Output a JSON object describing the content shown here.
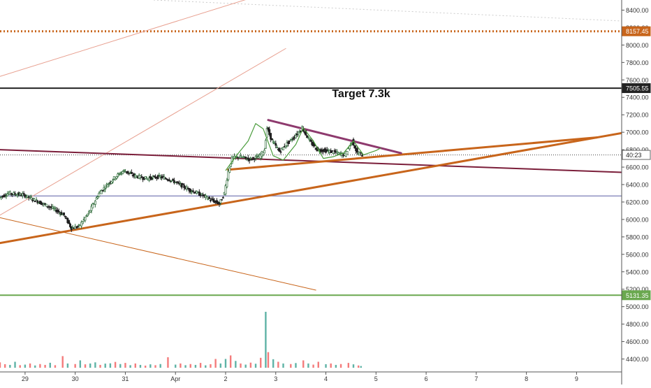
{
  "chart_data": {
    "type": "candlestick",
    "title": "",
    "annotation": "Target 7.3k",
    "y_axis": {
      "ylim": [
        4300,
        8500
      ],
      "ticks": [
        4400,
        4600,
        4800,
        5000,
        5200,
        5400,
        5600,
        5800,
        6000,
        6200,
        6400,
        6600,
        6800,
        7000,
        7200,
        7400,
        7600,
        7800,
        8000,
        8200,
        8400
      ],
      "tick_labels": [
        "4400.00",
        "4600.00",
        "4800.00",
        "5000.00",
        "5200.00",
        "5400.00",
        "5600.00",
        "5800.00",
        "6000.00",
        "6200.00",
        "6400.00",
        "6600.00",
        "6800.00",
        "7000.00",
        "7200.00",
        "7400.00",
        "7600.00",
        "7800.00",
        "8000.00",
        "8200.00",
        "8400.00"
      ],
      "price_labels": [
        {
          "value": 8157.45,
          "text": "8157.45",
          "color": "#c8651b"
        },
        {
          "value": 7505.55,
          "text": "7505.55",
          "color": "#222222"
        },
        {
          "value": 6740,
          "text": "40:23",
          "color": "#ffffff"
        },
        {
          "value": 5131.35,
          "text": "5131.35",
          "color": "#6aa84f"
        }
      ]
    },
    "x_axis": {
      "xlim": [
        28.5,
        10.0
      ],
      "tick_labels": [
        {
          "t": 29.0,
          "text": "29"
        },
        {
          "t": 30.0,
          "text": "30"
        },
        {
          "t": 31.0,
          "text": "31"
        },
        {
          "t": 32.0,
          "text": "Apr"
        },
        {
          "t": 33.0,
          "text": "2"
        },
        {
          "t": 34.0,
          "text": "3"
        },
        {
          "t": 35.0,
          "text": "4"
        },
        {
          "t": 36.0,
          "text": "5"
        },
        {
          "t": 37.0,
          "text": "6"
        },
        {
          "t": 38.0,
          "text": "7"
        },
        {
          "t": 39.0,
          "text": "8"
        },
        {
          "t": 40.0,
          "text": "9"
        }
      ]
    },
    "price_path": [
      {
        "t": 28.5,
        "p": 6250
      },
      {
        "t": 28.7,
        "p": 6300
      },
      {
        "t": 29.0,
        "p": 6280
      },
      {
        "t": 29.3,
        "p": 6200
      },
      {
        "t": 29.6,
        "p": 6120
      },
      {
        "t": 29.8,
        "p": 6050
      },
      {
        "t": 29.95,
        "p": 5900
      },
      {
        "t": 30.1,
        "p": 5920
      },
      {
        "t": 30.3,
        "p": 6080
      },
      {
        "t": 30.5,
        "p": 6300
      },
      {
        "t": 30.7,
        "p": 6420
      },
      {
        "t": 30.85,
        "p": 6500
      },
      {
        "t": 31.0,
        "p": 6560
      },
      {
        "t": 31.2,
        "p": 6500
      },
      {
        "t": 31.45,
        "p": 6470
      },
      {
        "t": 31.7,
        "p": 6490
      },
      {
        "t": 31.9,
        "p": 6460
      },
      {
        "t": 32.05,
        "p": 6420
      },
      {
        "t": 32.3,
        "p": 6340
      },
      {
        "t": 32.55,
        "p": 6280
      },
      {
        "t": 32.75,
        "p": 6220
      },
      {
        "t": 32.9,
        "p": 6180
      },
      {
        "t": 33.0,
        "p": 6300
      },
      {
        "t": 33.08,
        "p": 6550
      },
      {
        "t": 33.15,
        "p": 6700
      },
      {
        "t": 33.3,
        "p": 6720
      },
      {
        "t": 33.5,
        "p": 6690
      },
      {
        "t": 33.7,
        "p": 6720
      },
      {
        "t": 33.8,
        "p": 6800
      },
      {
        "t": 33.85,
        "p": 7050
      },
      {
        "t": 33.95,
        "p": 6900
      },
      {
        "t": 34.1,
        "p": 6780
      },
      {
        "t": 34.25,
        "p": 6870
      },
      {
        "t": 34.4,
        "p": 6950
      },
      {
        "t": 34.55,
        "p": 7050
      },
      {
        "t": 34.7,
        "p": 6900
      },
      {
        "t": 34.85,
        "p": 6800
      },
      {
        "t": 35.0,
        "p": 6790
      },
      {
        "t": 35.2,
        "p": 6770
      },
      {
        "t": 35.4,
        "p": 6740
      },
      {
        "t": 35.55,
        "p": 6900
      },
      {
        "t": 35.65,
        "p": 6760
      },
      {
        "t": 35.75,
        "p": 6740
      }
    ],
    "volume": {
      "ylim": [
        0,
        4000
      ],
      "bars": [
        {
          "t": 28.5,
          "v": 380,
          "c": "#f47c7c"
        },
        {
          "t": 28.6,
          "v": 250,
          "c": "#f47c7c"
        },
        {
          "t": 28.7,
          "v": 200,
          "c": "#5fb3a6"
        },
        {
          "t": 28.8,
          "v": 420,
          "c": "#5fb3a6"
        },
        {
          "t": 28.9,
          "v": 180,
          "c": "#f47c7c"
        },
        {
          "t": 29.0,
          "v": 220,
          "c": "#5fb3a6"
        },
        {
          "t": 29.1,
          "v": 300,
          "c": "#f47c7c"
        },
        {
          "t": 29.2,
          "v": 160,
          "c": "#5fb3a6"
        },
        {
          "t": 29.3,
          "v": 260,
          "c": "#f47c7c"
        },
        {
          "t": 29.4,
          "v": 200,
          "c": "#f47c7c"
        },
        {
          "t": 29.5,
          "v": 350,
          "c": "#5fb3a6"
        },
        {
          "t": 29.6,
          "v": 180,
          "c": "#f47c7c"
        },
        {
          "t": 29.75,
          "v": 820,
          "c": "#f47c7c"
        },
        {
          "t": 29.85,
          "v": 300,
          "c": "#5fb3a6"
        },
        {
          "t": 30.0,
          "v": 260,
          "c": "#f47c7c"
        },
        {
          "t": 30.1,
          "v": 520,
          "c": "#5fb3a6"
        },
        {
          "t": 30.2,
          "v": 240,
          "c": "#f47c7c"
        },
        {
          "t": 30.3,
          "v": 300,
          "c": "#5fb3a6"
        },
        {
          "t": 30.4,
          "v": 380,
          "c": "#5fb3a6"
        },
        {
          "t": 30.5,
          "v": 200,
          "c": "#f47c7c"
        },
        {
          "t": 30.6,
          "v": 290,
          "c": "#5fb3a6"
        },
        {
          "t": 30.7,
          "v": 310,
          "c": "#5fb3a6"
        },
        {
          "t": 30.8,
          "v": 410,
          "c": "#f47c7c"
        },
        {
          "t": 30.9,
          "v": 260,
          "c": "#5fb3a6"
        },
        {
          "t": 31.0,
          "v": 340,
          "c": "#f47c7c"
        },
        {
          "t": 31.1,
          "v": 180,
          "c": "#5fb3a6"
        },
        {
          "t": 31.2,
          "v": 300,
          "c": "#f47c7c"
        },
        {
          "t": 31.3,
          "v": 200,
          "c": "#5fb3a6"
        },
        {
          "t": 31.4,
          "v": 150,
          "c": "#f47c7c"
        },
        {
          "t": 31.5,
          "v": 240,
          "c": "#5fb3a6"
        },
        {
          "t": 31.6,
          "v": 180,
          "c": "#f47c7c"
        },
        {
          "t": 31.7,
          "v": 260,
          "c": "#5fb3a6"
        },
        {
          "t": 31.85,
          "v": 740,
          "c": "#f47c7c"
        },
        {
          "t": 32.0,
          "v": 220,
          "c": "#5fb3a6"
        },
        {
          "t": 32.1,
          "v": 300,
          "c": "#f47c7c"
        },
        {
          "t": 32.2,
          "v": 180,
          "c": "#5fb3a6"
        },
        {
          "t": 32.3,
          "v": 260,
          "c": "#f47c7c"
        },
        {
          "t": 32.4,
          "v": 200,
          "c": "#5fb3a6"
        },
        {
          "t": 32.5,
          "v": 340,
          "c": "#f47c7c"
        },
        {
          "t": 32.6,
          "v": 170,
          "c": "#5fb3a6"
        },
        {
          "t": 32.7,
          "v": 250,
          "c": "#f47c7c"
        },
        {
          "t": 32.8,
          "v": 620,
          "c": "#f47c7c"
        },
        {
          "t": 32.9,
          "v": 300,
          "c": "#5fb3a6"
        },
        {
          "t": 33.0,
          "v": 620,
          "c": "#5fb3a6"
        },
        {
          "t": 33.1,
          "v": 870,
          "c": "#f47c7c"
        },
        {
          "t": 33.2,
          "v": 480,
          "c": "#5fb3a6"
        },
        {
          "t": 33.3,
          "v": 300,
          "c": "#f47c7c"
        },
        {
          "t": 33.4,
          "v": 220,
          "c": "#5fb3a6"
        },
        {
          "t": 33.5,
          "v": 360,
          "c": "#f47c7c"
        },
        {
          "t": 33.6,
          "v": 280,
          "c": "#5fb3a6"
        },
        {
          "t": 33.7,
          "v": 700,
          "c": "#f47c7c"
        },
        {
          "t": 33.8,
          "v": 3950,
          "c": "#5fb3a6"
        },
        {
          "t": 33.85,
          "v": 1100,
          "c": "#f47c7c"
        },
        {
          "t": 33.95,
          "v": 600,
          "c": "#5fb3a6"
        },
        {
          "t": 34.05,
          "v": 420,
          "c": "#f47c7c"
        },
        {
          "t": 34.15,
          "v": 300,
          "c": "#5fb3a6"
        },
        {
          "t": 34.3,
          "v": 260,
          "c": "#f47c7c"
        },
        {
          "t": 34.4,
          "v": 330,
          "c": "#5fb3a6"
        },
        {
          "t": 34.55,
          "v": 520,
          "c": "#f47c7c"
        },
        {
          "t": 34.65,
          "v": 300,
          "c": "#5fb3a6"
        },
        {
          "t": 34.75,
          "v": 220,
          "c": "#f47c7c"
        },
        {
          "t": 34.85,
          "v": 420,
          "c": "#f47c7c"
        },
        {
          "t": 35.0,
          "v": 250,
          "c": "#5fb3a6"
        },
        {
          "t": 35.1,
          "v": 300,
          "c": "#f47c7c"
        },
        {
          "t": 35.2,
          "v": 200,
          "c": "#5fb3a6"
        },
        {
          "t": 35.3,
          "v": 260,
          "c": "#f47c7c"
        },
        {
          "t": 35.45,
          "v": 340,
          "c": "#f47c7c"
        },
        {
          "t": 35.55,
          "v": 240,
          "c": "#5fb3a6"
        },
        {
          "t": 35.65,
          "v": 160,
          "c": "#f47c7c"
        },
        {
          "t": 35.7,
          "v": 120,
          "c": "#5fb3a6"
        }
      ]
    },
    "horizontal_levels": [
      {
        "value": 8157.45,
        "color": "#c8651b",
        "style": "dotted"
      },
      {
        "value": 7505.55,
        "color": "#222222",
        "style": "solid"
      },
      {
        "value": 6270,
        "color": "#5b5ea6",
        "style": "solid"
      },
      {
        "value": 5131.35,
        "color": "#6aa84f",
        "style": "solid"
      },
      {
        "value": 6740,
        "color": "#444444",
        "style": "dashed"
      }
    ],
    "trendlines": [
      {
        "from": {
          "t": 28.5,
          "p": 7640
        },
        "to": {
          "t": 33.4,
          "p": 8520
        },
        "color": "#e8a090",
        "width": 1
      },
      {
        "from": {
          "t": 28.5,
          "p": 6050
        },
        "to": {
          "t": 34.2,
          "p": 7960
        },
        "color": "#e8a090",
        "width": 1
      },
      {
        "from": {
          "t": 28.5,
          "p": 6800
        },
        "to": {
          "t": 40.9,
          "p": 6540
        },
        "color": "#7b1e3a",
        "width": 2
      },
      {
        "from": {
          "t": 28.5,
          "p": 5730
        },
        "to": {
          "t": 40.9,
          "p": 6990
        },
        "color": "#c8651b",
        "width": 3
      },
      {
        "from": {
          "t": 33.05,
          "p": 6570
        },
        "to": {
          "t": 40.4,
          "p": 6940
        },
        "color": "#c8651b",
        "width": 3
      },
      {
        "from": {
          "t": 33.85,
          "p": 7140
        },
        "to": {
          "t": 36.5,
          "p": 6760
        },
        "color": "#8e3a6e",
        "width": 3
      },
      {
        "from": {
          "t": 28.5,
          "p": 6020
        },
        "to": {
          "t": 34.8,
          "p": 5190
        },
        "color": "#c8651b",
        "width": 1
      }
    ]
  }
}
